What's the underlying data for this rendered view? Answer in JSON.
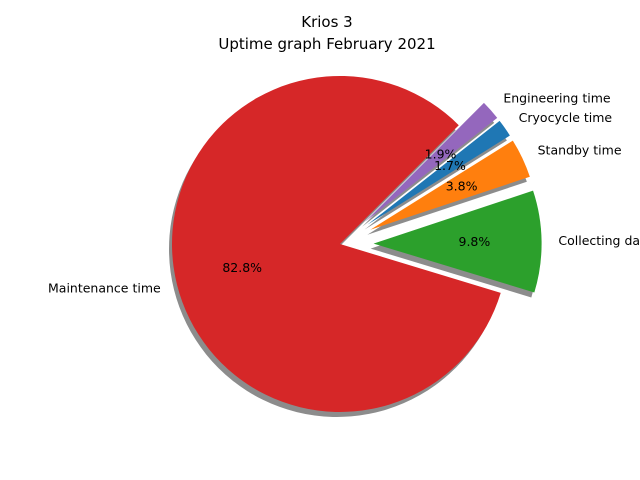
{
  "chart_data": {
    "type": "pie",
    "title": "Krios 3",
    "subtitle": "Uptime graph February 2021",
    "slices": [
      {
        "label": "Maintenance time",
        "value": 82.8,
        "pct_label": "82.8%",
        "color": "#d62728",
        "exploded": false
      },
      {
        "label": "Collecting data",
        "value": 9.8,
        "pct_label": "9.8%",
        "color": "#2ca02c",
        "exploded": true
      },
      {
        "label": "Standby time",
        "value": 3.8,
        "pct_label": "3.8%",
        "color": "#ff7f0e",
        "exploded": true
      },
      {
        "label": "Cryocycle time",
        "value": 1.7,
        "pct_label": "1.7%",
        "color": "#1f77b4",
        "exploded": true
      },
      {
        "label": "Engineering time",
        "value": 1.9,
        "pct_label": "1.9%",
        "color": "#9467bd",
        "exploded": true
      }
    ],
    "shadow": true,
    "legend": "none"
  }
}
